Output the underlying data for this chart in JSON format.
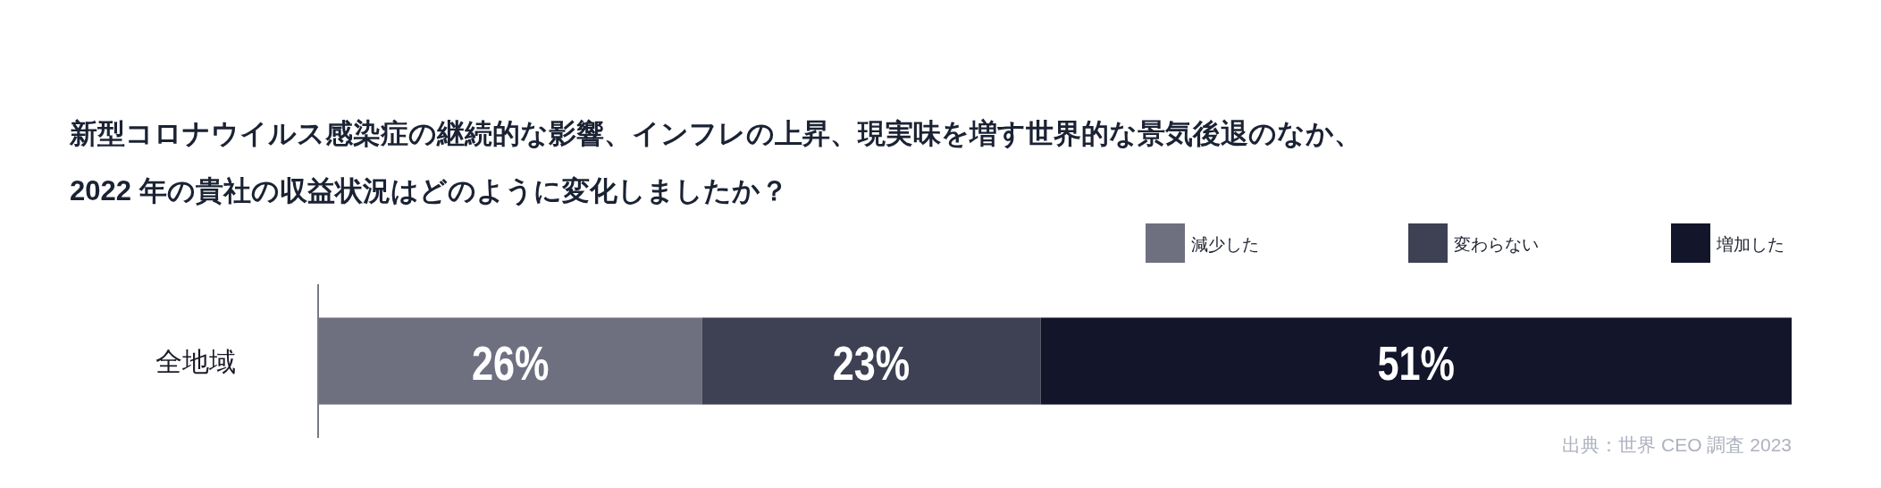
{
  "chart_data": {
    "type": "bar",
    "orientation": "horizontal",
    "stacked": true,
    "title": "新型コロナウイルス感染症の継続的な影響、インフレの上昇、現実味を増す世界的な景気後退のなか、2022 年の貴社の収益状況はどのように変化しましたか？",
    "categories": [
      "全地域"
    ],
    "series": [
      {
        "name": "減少した",
        "color": "#6e7080",
        "values": [
          26
        ],
        "value_labels": [
          "26%"
        ]
      },
      {
        "name": "変わらない",
        "color": "#3e4053",
        "values": [
          23
        ],
        "value_labels": [
          "23%"
        ]
      },
      {
        "name": "増加した",
        "color": "#13152b",
        "values": [
          51
        ],
        "value_labels": [
          "51%"
        ]
      }
    ],
    "xlim": [
      0,
      100
    ],
    "tick_labels": "y",
    "legend": "top right",
    "annotations": [
      "出典：世界 CEO 調査 2023"
    ]
  }
}
